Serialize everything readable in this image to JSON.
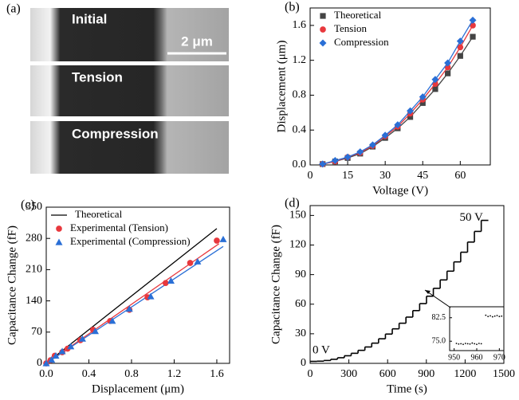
{
  "images": {
    "panel_label": "(a)",
    "labels": [
      "Initial",
      "Tension",
      "Compression"
    ],
    "scale_bar": "2 μm"
  },
  "chart_data": [
    {
      "type": "scatter",
      "panel_label": "(b)",
      "x_label": "Voltage (V)",
      "y_label": "Displacement (μm)",
      "xlim": [
        0,
        72
      ],
      "ylim": [
        0,
        1.8
      ],
      "xticks": [
        0,
        15,
        30,
        45,
        60
      ],
      "yticks": [
        {
          "value": 0,
          "label": "0.0"
        },
        0.4,
        0.8,
        1.2,
        1.6
      ],
      "legend": "upper left",
      "x": [
        5,
        10,
        15,
        20,
        25,
        30,
        35,
        40,
        45,
        50,
        55,
        60,
        65
      ],
      "series": [
        {
          "name": "Theoretical",
          "color": "#444444",
          "marker": "square",
          "mode": "markers+line",
          "values": [
            0.01,
            0.04,
            0.08,
            0.13,
            0.21,
            0.31,
            0.42,
            0.55,
            0.71,
            0.87,
            1.05,
            1.25,
            1.47
          ]
        },
        {
          "name": "Tension",
          "color": "#e8383d",
          "marker": "circle",
          "mode": "markers+line",
          "values": [
            0.01,
            0.04,
            0.09,
            0.14,
            0.22,
            0.33,
            0.44,
            0.59,
            0.75,
            0.93,
            1.12,
            1.35,
            1.6
          ]
        },
        {
          "name": "Compression",
          "color": "#2a6fd6",
          "marker": "diamond",
          "mode": "markers+line",
          "values": [
            0.01,
            0.05,
            0.09,
            0.15,
            0.23,
            0.34,
            0.46,
            0.62,
            0.78,
            0.98,
            1.17,
            1.42,
            1.66
          ]
        }
      ]
    },
    {
      "type": "scatter",
      "panel_label": "(c)",
      "x_label": "Displacement (μm)",
      "y_label": "Capacitance Change (fF)",
      "xlim": [
        0,
        1.72
      ],
      "ylim": [
        0,
        350
      ],
      "xticks": [
        {
          "value": 0,
          "label": "0.0"
        },
        0.4,
        0.8,
        1.2,
        1.6
      ],
      "yticks": [
        0,
        70,
        140,
        210,
        280,
        350
      ],
      "legend": "upper left",
      "series": [
        {
          "name": "Theoretical",
          "color": "#000000",
          "mode": "line",
          "x": [
            0,
            1.6
          ],
          "values": [
            0,
            302
          ]
        },
        {
          "name": "Experimental (Tension)",
          "color": "#e8383d",
          "marker": "circle",
          "mode": "markers",
          "x": [
            0,
            0.04,
            0.08,
            0.15,
            0.2,
            0.32,
            0.44,
            0.6,
            0.78,
            0.95,
            1.12,
            1.35,
            1.6
          ],
          "values": [
            0,
            7,
            17,
            25,
            33,
            52,
            75,
            95,
            120,
            148,
            180,
            225,
            275
          ]
        },
        {
          "name": "Experimental (Compression)",
          "color": "#2a6fd6",
          "marker": "triangle",
          "mode": "markers",
          "x": [
            0,
            0.05,
            0.09,
            0.15,
            0.23,
            0.34,
            0.46,
            0.62,
            0.78,
            0.98,
            1.17,
            1.42,
            1.66
          ],
          "values": [
            0,
            8,
            17,
            27,
            38,
            55,
            72,
            95,
            122,
            150,
            185,
            228,
            278
          ]
        }
      ],
      "fits": [
        {
          "color": "#e8383d",
          "x": [
            0,
            1.62
          ],
          "values": [
            0,
            268
          ]
        },
        {
          "color": "#2a6fd6",
          "x": [
            0,
            1.66
          ],
          "values": [
            0,
            262
          ]
        }
      ]
    },
    {
      "type": "step",
      "panel_label": "(d)",
      "x_label": "Time (s)",
      "y_label": "Capacitance Change (fF)",
      "xlim": [
        0,
        1500
      ],
      "ylim": [
        0,
        160
      ],
      "xticks": [
        0,
        300,
        600,
        900,
        1200,
        1500
      ],
      "yticks": [
        0,
        30,
        60,
        90,
        120,
        150
      ],
      "annotations": [
        "0 V",
        "50 V"
      ],
      "series": [
        {
          "color": "#000000",
          "mode": "step",
          "x": [
            0,
            53,
            106,
            159,
            212,
            265,
            318,
            371,
            424,
            477,
            530,
            583,
            636,
            689,
            742,
            795,
            848,
            901,
            954,
            1007,
            1060,
            1113,
            1166,
            1219,
            1272,
            1325,
            1380
          ],
          "values": [
            2,
            2.2,
            2.9,
            4.1,
            5.7,
            7.7,
            10.2,
            13.2,
            16.6,
            20.5,
            24.9,
            29.7,
            35,
            40.7,
            46.9,
            53.5,
            60.6,
            68.1,
            76.1,
            84.6,
            93.5,
            102.9,
            112.7,
            123,
            133.8,
            145,
            145
          ]
        }
      ],
      "inset": {
        "xlim": [
          948,
          972
        ],
        "ylim": [
          72,
          86
        ],
        "xticks": [
          950,
          960,
          970
        ],
        "yticks": [
          {
            "value": 75,
            "label": "75.0"
          },
          82.5
        ],
        "x": [
          951,
          952,
          953,
          954,
          955,
          956,
          957,
          958,
          959,
          960,
          961,
          962,
          964,
          965,
          966,
          967,
          968,
          969,
          970,
          971
        ],
        "values": [
          74.3,
          74.1,
          74.2,
          74.0,
          74.3,
          74.2,
          74.1,
          74.4,
          74.2,
          74.0,
          74.3,
          74.2,
          83.3,
          82.9,
          83.1,
          82.8,
          83.0,
          83.2,
          82.9,
          83.0
        ]
      }
    }
  ]
}
